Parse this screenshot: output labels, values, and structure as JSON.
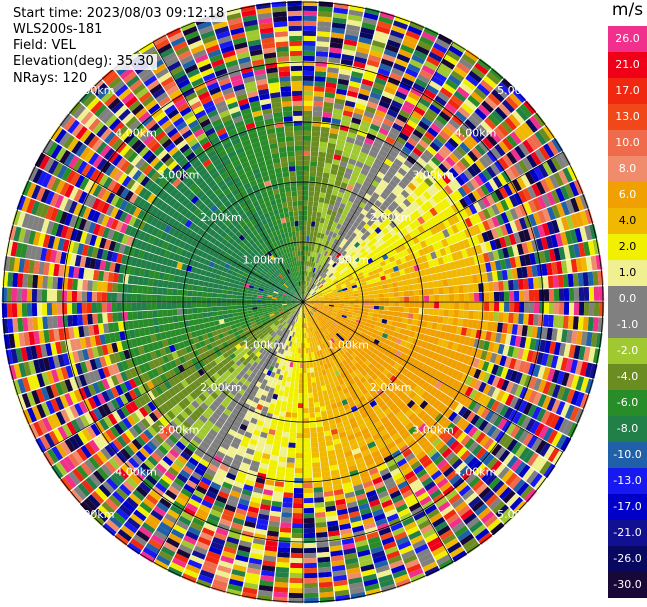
{
  "header": {
    "start_time": "Start time: 2023/08/03 09:12:18",
    "station": "WLS200s-181",
    "field": "Field: VEL",
    "elevation": "Elevation(deg): 35.30",
    "nrays": "NRays: 120"
  },
  "chart_data": {
    "type": "ppi",
    "field": "VEL",
    "units": "m/s",
    "n_rays": 120,
    "elevation_deg": 35.3,
    "range_rings_km": [
      1.0,
      2.0,
      3.0,
      4.0,
      5.0
    ],
    "range_ring_labels": [
      "1.00km",
      "2.00km",
      "3.00km",
      "4.00km",
      "5.00km"
    ],
    "colorbar": {
      "title": "m/s",
      "ticks": [
        "26.0",
        "21.0",
        "17.0",
        "13.0",
        "10.0",
        "8.0",
        "6.0",
        "4.0",
        "2.0",
        "1.0",
        "0.0",
        "-1.0",
        "-2.0",
        "-4.0",
        "-6.0",
        "-8.0",
        "-10.0",
        "-13.0",
        "-17.0",
        "-21.0",
        "-26.0",
        "-30.0"
      ],
      "colors": [
        "#f0308c",
        "#f00018",
        "#f02810",
        "#f04818",
        "#f06a4c",
        "#f08c6c",
        "#f0a000",
        "#f0b800",
        "#f0f000",
        "#f0f090",
        "#808080",
        "#808080",
        "#a0c830",
        "#6a8c20",
        "#288c28",
        "#208048",
        "#2060a8",
        "#1818f0",
        "#0000c8",
        "#101090",
        "#080860",
        "#180838"
      ]
    },
    "velocity_pattern": {
      "description_ignored": false,
      "toward_azimuth_deg": 270,
      "inner_valid_range_km": 3.0
    }
  }
}
